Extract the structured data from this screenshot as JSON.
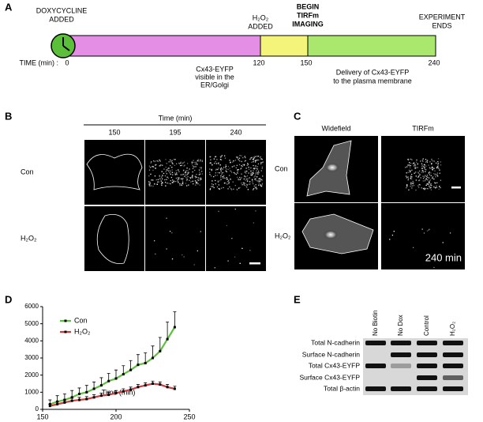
{
  "panel_a": {
    "label": "A",
    "start": [
      "DOXYCYCLINE",
      "ADDED"
    ],
    "h2o2": [
      "H₂O₂",
      "ADDED"
    ],
    "begin": [
      "BEGIN",
      "TIRFm",
      "IMAGING"
    ],
    "end": [
      "EXPERIMENT",
      "ENDS"
    ],
    "time_label": "TIME (min) :",
    "ticks": [
      0,
      120,
      150,
      240
    ],
    "note_er": [
      "Cx43-EYFP",
      "visible in the",
      "ER/Golgi"
    ],
    "note_pm": [
      "Delivery of Cx43-EYFP",
      "to the plasma membrane"
    ]
  },
  "panel_b": {
    "label": "B",
    "axis_title": "Time (min)",
    "columns": [
      150,
      195,
      240
    ],
    "rows": [
      "Con",
      "H₂O₂"
    ]
  },
  "panel_c": {
    "label": "C",
    "columns": [
      "Widefield",
      "TIRFm"
    ],
    "rows": [
      "Con",
      "H₂O₂"
    ],
    "stamp": "240 min"
  },
  "panel_d": {
    "label": "D",
    "chart_data": {
      "type": "line",
      "xlabel": "Time (min)",
      "x": [
        155,
        160,
        165,
        170,
        175,
        180,
        185,
        190,
        195,
        200,
        205,
        210,
        215,
        220,
        225,
        230,
        235,
        240
      ],
      "series": [
        {
          "name": "Con",
          "color": "#5cc23a",
          "values": [
            300,
            450,
            550,
            700,
            900,
            1000,
            1200,
            1400,
            1650,
            1800,
            2050,
            2300,
            2600,
            2700,
            3000,
            3400,
            4100,
            4800
          ],
          "errors": [
            250,
            350,
            350,
            400,
            350,
            400,
            400,
            450,
            450,
            500,
            500,
            550,
            600,
            600,
            700,
            800,
            1000,
            900
          ]
        },
        {
          "name": "H₂O₂",
          "color": "#d03a3a",
          "values": [
            200,
            300,
            400,
            500,
            550,
            600,
            700,
            800,
            850,
            950,
            1050,
            1150,
            1300,
            1400,
            1500,
            1450,
            1300,
            1200
          ],
          "errors": [
            100,
            150,
            150,
            150,
            150,
            150,
            150,
            150,
            150,
            150,
            150,
            150,
            150,
            150,
            150,
            150,
            150,
            150
          ]
        }
      ],
      "xlim": [
        150,
        250
      ],
      "ylim": [
        0,
        6000
      ],
      "xticks": [
        150,
        200,
        250
      ],
      "yticks": [
        0,
        1000,
        2000,
        3000,
        4000,
        5000,
        6000
      ],
      "legend": "upper left"
    }
  },
  "panel_e": {
    "label": "E",
    "columns": [
      "No Biotin",
      "No Dox",
      "Control",
      "H₂O₂"
    ],
    "rows": [
      "Total N-cadherin",
      "Surface N-cadherin",
      "Total Cx43-EYFP",
      "Surface Cx43-EYFP",
      "Total β-actin"
    ]
  }
}
